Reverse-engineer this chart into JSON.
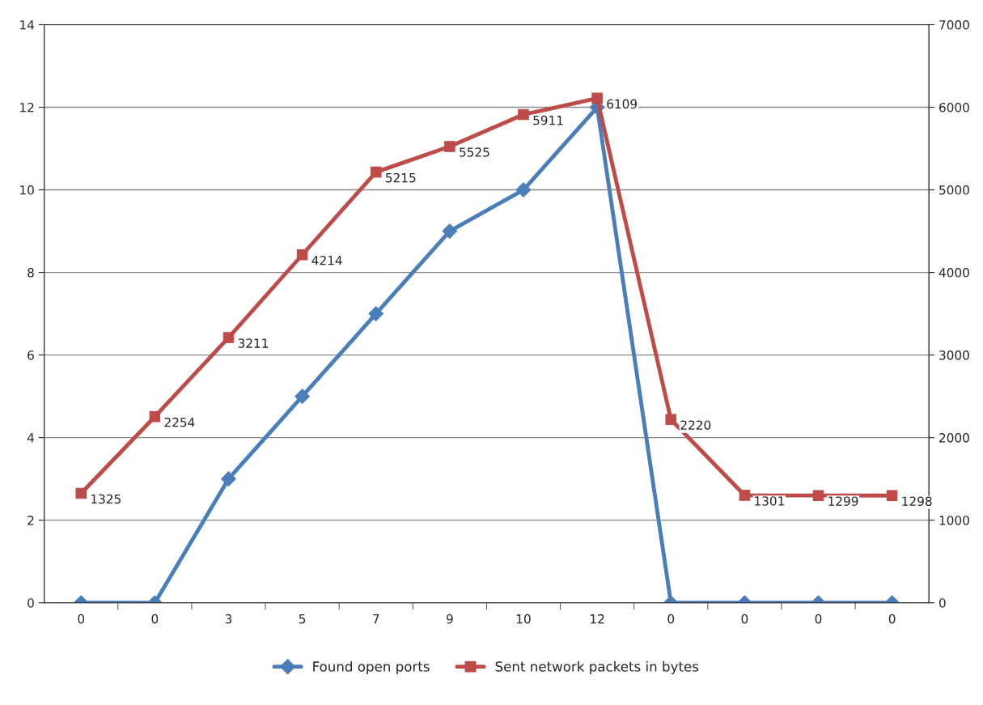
{
  "chart_data": {
    "type": "line",
    "categories": [
      "0",
      "0",
      "3",
      "5",
      "7",
      "9",
      "10",
      "12",
      "0",
      "0",
      "0",
      "0"
    ],
    "ylim": [
      0,
      14
    ],
    "yticks": [
      0,
      2,
      4,
      6,
      8,
      10,
      12,
      14
    ],
    "y2lim": [
      0,
      7000
    ],
    "y2ticks": [
      0,
      1000,
      2000,
      3000,
      4000,
      5000,
      6000,
      7000
    ],
    "grid": "y",
    "legend": "bottom",
    "series": [
      {
        "name": "Found open ports",
        "color": "#4a7ebb",
        "marker": "diamond",
        "values": [
          0,
          0,
          3,
          5,
          7,
          9,
          10,
          12,
          0,
          0,
          0,
          0
        ]
      },
      {
        "name": "Sent network packets in bytes",
        "axis": "y2",
        "color": "#be4b48",
        "marker": "square",
        "values": [
          1325,
          2254,
          3211,
          4214,
          5215,
          5525,
          5911,
          6109,
          2220,
          1301,
          1299,
          1298
        ],
        "value_labels": [
          "1325",
          "2254",
          "3211",
          "4214",
          "5215",
          "5525",
          "5911",
          "6109",
          "2220",
          "1301",
          "1299",
          "1298"
        ]
      }
    ]
  }
}
